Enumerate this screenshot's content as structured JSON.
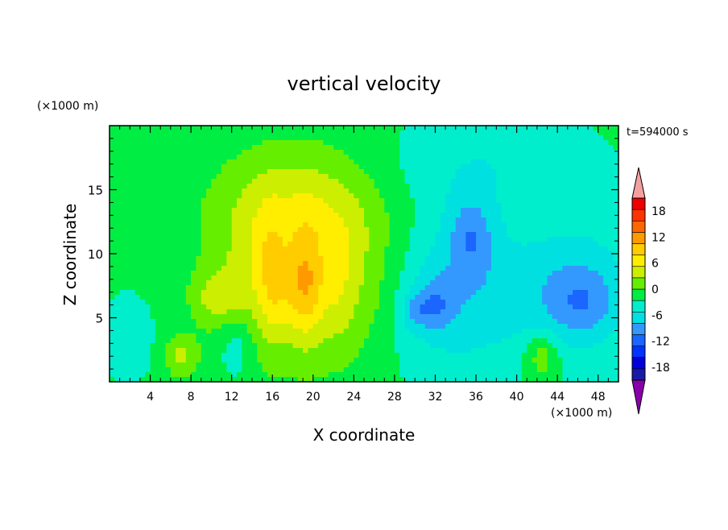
{
  "chart_data": {
    "type": "heatmap",
    "title": "vertical velocity",
    "xlabel": "X coordinate",
    "ylabel": "Z coordinate",
    "x_unit": "(×1000 m)",
    "y_unit": "(×1000 m)",
    "time_label": "t=594000 s",
    "xlim": [
      0,
      50
    ],
    "ylim": [
      0,
      20
    ],
    "x_ticks": [
      4,
      8,
      12,
      16,
      20,
      24,
      28,
      32,
      36,
      40,
      44,
      48
    ],
    "y_ticks": [
      5,
      10,
      15
    ],
    "colorbar": {
      "labels": [
        "18",
        "12",
        "6",
        "0",
        "-6",
        "-12",
        "-18"
      ],
      "label_values": [
        18,
        12,
        6,
        0,
        -6,
        -12,
        -18
      ],
      "levels": [
        -21,
        -18,
        -15,
        -12,
        -9,
        -6,
        -3,
        0,
        3,
        6,
        9,
        12,
        15,
        18,
        21
      ],
      "colors": [
        "#1a1aa8",
        "#0000dd",
        "#0033ff",
        "#1a66ff",
        "#3399ff",
        "#00e0e0",
        "#00eecc",
        "#00ee44",
        "#66ee00",
        "#ccee00",
        "#ffee00",
        "#ffcc00",
        "#ff9900",
        "#ff6600",
        "#ff3300",
        "#ee0000"
      ],
      "under_color": "#8800aa",
      "over_color": "#f4a0a0"
    },
    "features": [
      {
        "x": 19.5,
        "z": 8.5,
        "sx": 5.5,
        "sz": 5.0,
        "w": 10
      },
      {
        "x": 18.5,
        "z": 7.0,
        "sx": 2.0,
        "sz": 2.2,
        "w": 4
      },
      {
        "x": 10.5,
        "z": 6.5,
        "sx": 1.8,
        "sz": 1.6,
        "w": 5
      },
      {
        "x": 15.0,
        "z": 9.0,
        "sx": 1.5,
        "sz": 4.0,
        "w": 2
      },
      {
        "x": 18.0,
        "z": 14.0,
        "sx": 6.5,
        "sz": 3.5,
        "w": 4
      },
      {
        "x": 7.0,
        "z": 2.0,
        "sx": 1.2,
        "sz": 1.2,
        "w": 6
      },
      {
        "x": 42.5,
        "z": 2.0,
        "sx": 1.2,
        "sz": 1.3,
        "w": 6
      },
      {
        "x": 12.5,
        "z": 3.0,
        "sx": 1.2,
        "sz": 2.0,
        "w": -4
      },
      {
        "x": 34.0,
        "z": 7.0,
        "sx": 5.0,
        "sz": 4.5,
        "w": -6
      },
      {
        "x": 35.5,
        "z": 11.5,
        "sx": 1.6,
        "sz": 2.2,
        "w": -6
      },
      {
        "x": 32.0,
        "z": 6.0,
        "sx": 1.3,
        "sz": 1.5,
        "w": -5
      },
      {
        "x": 30.0,
        "z": 5.5,
        "sx": 1.0,
        "sz": 1.0,
        "w": -4
      },
      {
        "x": 46.0,
        "z": 7.0,
        "sx": 4.0,
        "sz": 3.5,
        "w": -7
      },
      {
        "x": 46.5,
        "z": 6.0,
        "sx": 2.0,
        "sz": 1.5,
        "w": -3
      },
      {
        "x": 36.5,
        "z": 17.0,
        "sx": 7.0,
        "sz": 2.5,
        "w": -3
      },
      {
        "x": 2.0,
        "z": 3.5,
        "sx": 1.5,
        "sz": 2.0,
        "w": -3
      }
    ]
  }
}
